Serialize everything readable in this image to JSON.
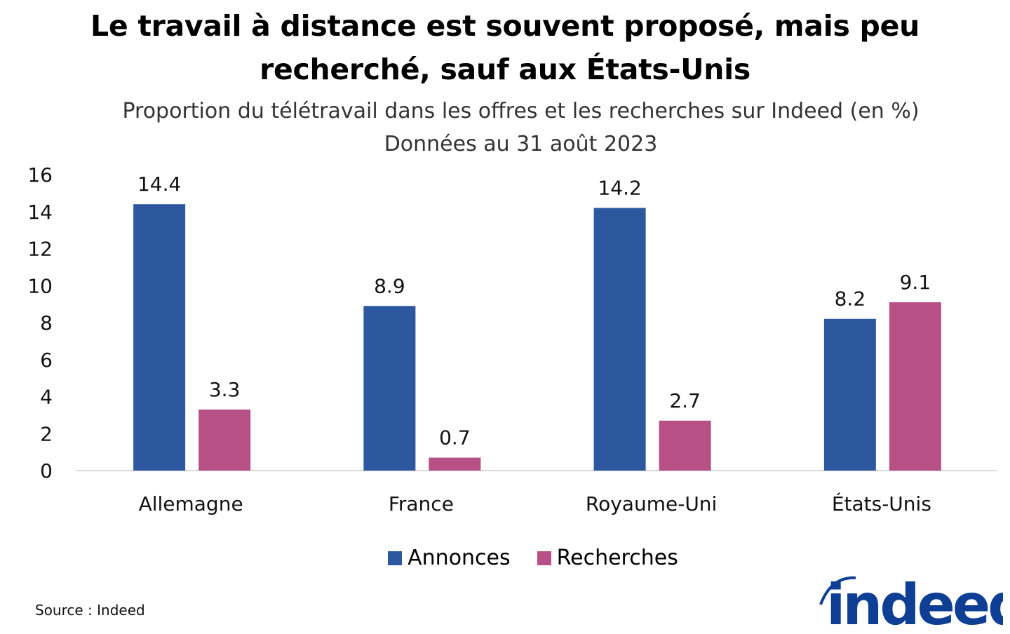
{
  "chart_data": {
    "type": "bar",
    "title": "Le travail à distance est souvent proposé, mais peu recherché, sauf aux États-Unis",
    "subtitle": "Proportion du télétravail dans les offres et les recherches sur Indeed (en %)",
    "subtitle2": "Données au 31 août 2023",
    "categories": [
      "Allemagne",
      "France",
      "Royaume-Uni",
      "États-Unis"
    ],
    "series": [
      {
        "name": "Annonces",
        "color": "#2d58a0",
        "values": [
          14.4,
          8.9,
          14.2,
          8.2
        ]
      },
      {
        "name": "Recherches",
        "color": "#b75085",
        "values": [
          3.3,
          0.7,
          2.7,
          9.1
        ]
      }
    ],
    "ylim": [
      0,
      16
    ],
    "yticks": [
      "0",
      "2",
      "4",
      "6",
      "8",
      "10",
      "12",
      "14",
      "16"
    ],
    "grid": false,
    "legend": "bottom",
    "xlabel": "",
    "ylabel": ""
  },
  "source": "Source : Indeed",
  "logo": {
    "text": "indeed",
    "color": "#0f3f94"
  }
}
